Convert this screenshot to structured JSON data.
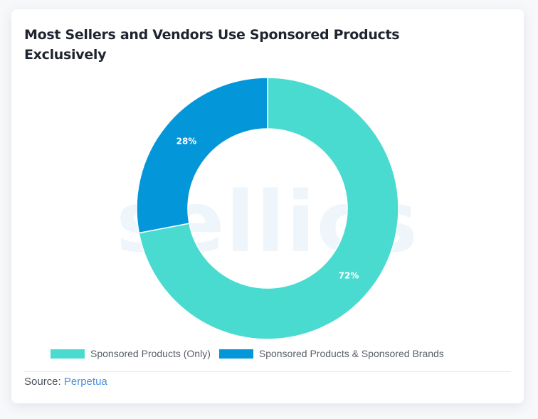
{
  "card": {
    "title": "Most Sellers and Vendors Use Sponsored Products Exclusively",
    "watermark": "sellics",
    "source_label": "Source:",
    "source_link": "Perpetua"
  },
  "legend": [
    {
      "label": "Sponsored Products (Only)",
      "color": "#4adbd0"
    },
    {
      "label": "Sponsored Products & Sponsored Brands",
      "color": "#0396d9"
    }
  ],
  "chart_data": {
    "type": "pie",
    "subtype": "donut",
    "title": "Most Sellers and Vendors Use Sponsored Products Exclusively",
    "categories": [
      "Sponsored Products (Only)",
      "Sponsored Products & Sponsored Brands"
    ],
    "values": [
      72,
      28
    ],
    "labels": [
      "72%",
      "28%"
    ],
    "colors": [
      "#4adbd0",
      "#0396d9"
    ],
    "legend_position": "bottom",
    "source": "Perpetua"
  }
}
